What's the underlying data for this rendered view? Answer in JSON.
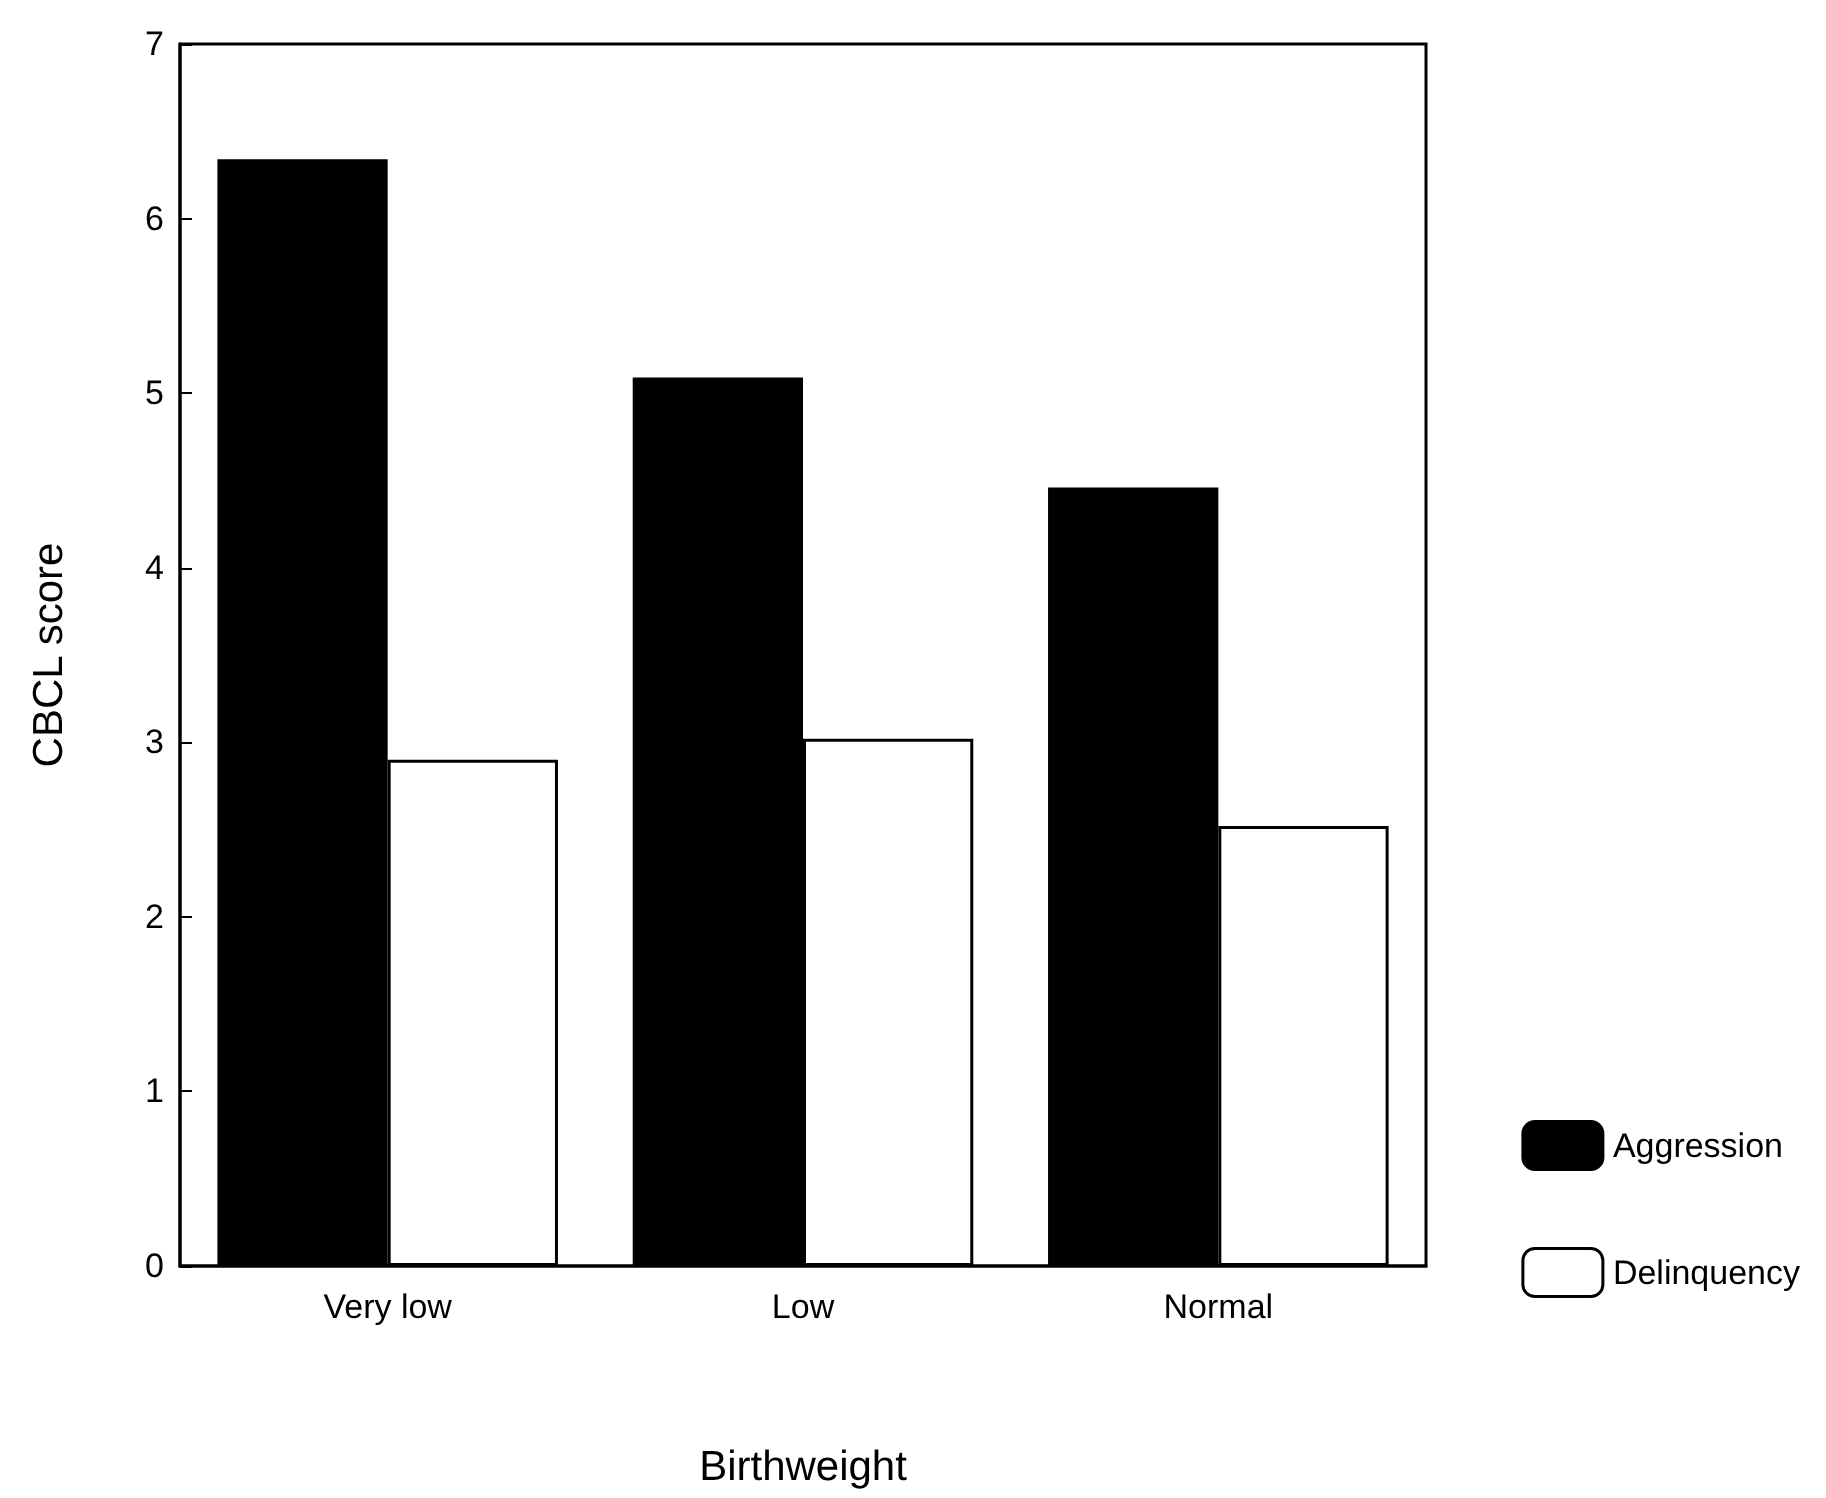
{
  "chart_data": {
    "type": "bar",
    "xlabel": "Birthweight",
    "ylabel": "CBCL score",
    "categories": [
      "Very low",
      "Low",
      "Normal"
    ],
    "series": [
      {
        "name": "Aggression",
        "color": "#000000",
        "values": [
          6.34,
          5.09,
          4.46
        ]
      },
      {
        "name": "Delinquency",
        "color": "#ffffff",
        "values": [
          2.9,
          3.02,
          2.52
        ]
      }
    ],
    "ylim": [
      0,
      7
    ],
    "yticks": [
      0,
      1,
      2,
      3,
      4,
      5,
      6,
      7
    ],
    "grid": false,
    "legend": "bottom right"
  }
}
